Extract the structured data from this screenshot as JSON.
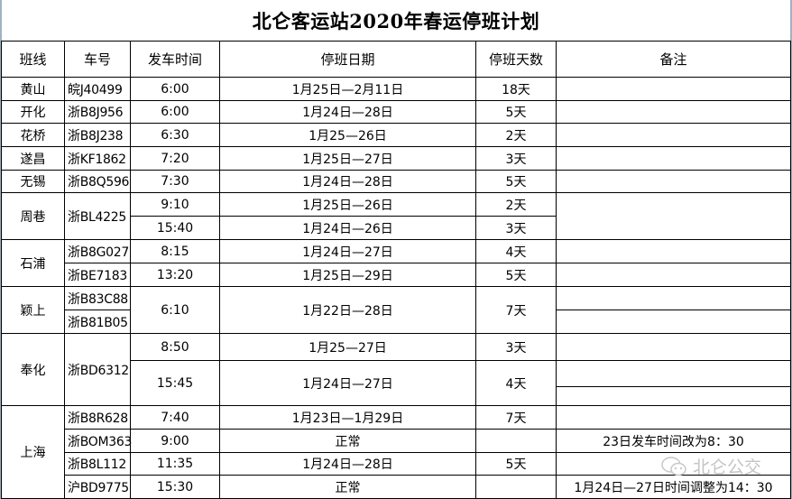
{
  "title": "北仑客运站2020年春运停班计划",
  "headers": [
    "班线",
    "车号",
    "发车时间",
    "停班日期",
    "停班天数",
    "备注"
  ],
  "groups": [
    {
      "line": "黄山",
      "plate": "皖J40499",
      "trips": [
        {
          "time": "6:00",
          "dates": "1月25日—2月11日",
          "days": "18天",
          "remark": ""
        }
      ]
    },
    {
      "line": "开化",
      "plate": "浙B8J956",
      "trips": [
        {
          "time": "6:00",
          "dates": "1月24日—28日",
          "days": "5天",
          "remark": ""
        }
      ]
    },
    {
      "line": "花桥",
      "plate": "浙B8J238",
      "trips": [
        {
          "time": "6:30",
          "dates": "1月25—26日",
          "days": "2天",
          "remark": ""
        }
      ]
    },
    {
      "line": "遂昌",
      "plate": "浙KF1862",
      "trips": [
        {
          "time": "7:20",
          "dates": "1月25日—27日",
          "days": "3天",
          "remark": ""
        }
      ]
    },
    {
      "line": "无锡",
      "plate": "浙B8Q596",
      "trips": [
        {
          "time": "7:30",
          "dates": "1月24日—28日",
          "days": "5天",
          "remark": ""
        }
      ]
    },
    {
      "line": "周巷",
      "plate": "浙BL4225",
      "trips": [
        {
          "time": "9:10",
          "dates": "1月25日—26日",
          "days": "2天"
        },
        {
          "time": "15:40",
          "dates": "1月24日—26日",
          "days": "3天"
        }
      ]
    },
    {
      "line": "石浦",
      "trips": [
        {
          "plate": "浙B8G027",
          "time": "8:15",
          "dates": "1月24日—27日",
          "days": "4天",
          "remark": ""
        },
        {
          "plate": "浙BE7183",
          "time": "13:20",
          "dates": "1月25日—29日",
          "days": "5天",
          "remark": ""
        }
      ]
    },
    {
      "line": "颖上",
      "plates": [
        "浙B83C88",
        "浙B81B05"
      ],
      "trips": [
        {
          "time": "6:10",
          "dates": "1月22日—28日",
          "days": "7天"
        }
      ]
    },
    {
      "line": "奉化",
      "plate": "浙BD6312",
      "trips": [
        {
          "time": "8:50",
          "dates": "1月25—27日",
          "days": "3天"
        },
        {
          "time": "15:45",
          "dates": "1月24日—27日",
          "days": "4天"
        }
      ]
    },
    {
      "line": "上海",
      "trips": [
        {
          "plate": "浙B8R628",
          "time": "7:40",
          "dates": "1月23日—1月29日",
          "days": "7天",
          "remark": ""
        },
        {
          "plate": "浙BOM363",
          "time": "9:00",
          "dates": "正常",
          "days": "",
          "remark": "23日发车时间改为8：30"
        },
        {
          "plate": "浙B8L112",
          "time": "11:35",
          "dates": "1月24日—28日",
          "days": "5天",
          "remark": ""
        },
        {
          "plate": "沪BD9775",
          "time": "15:30",
          "dates": "正常",
          "days": "",
          "remark": "1月24日—27日时间调整为14：30"
        }
      ]
    }
  ],
  "watermark": {
    "text": "北仑公交",
    "icon": "wechat-icon"
  }
}
